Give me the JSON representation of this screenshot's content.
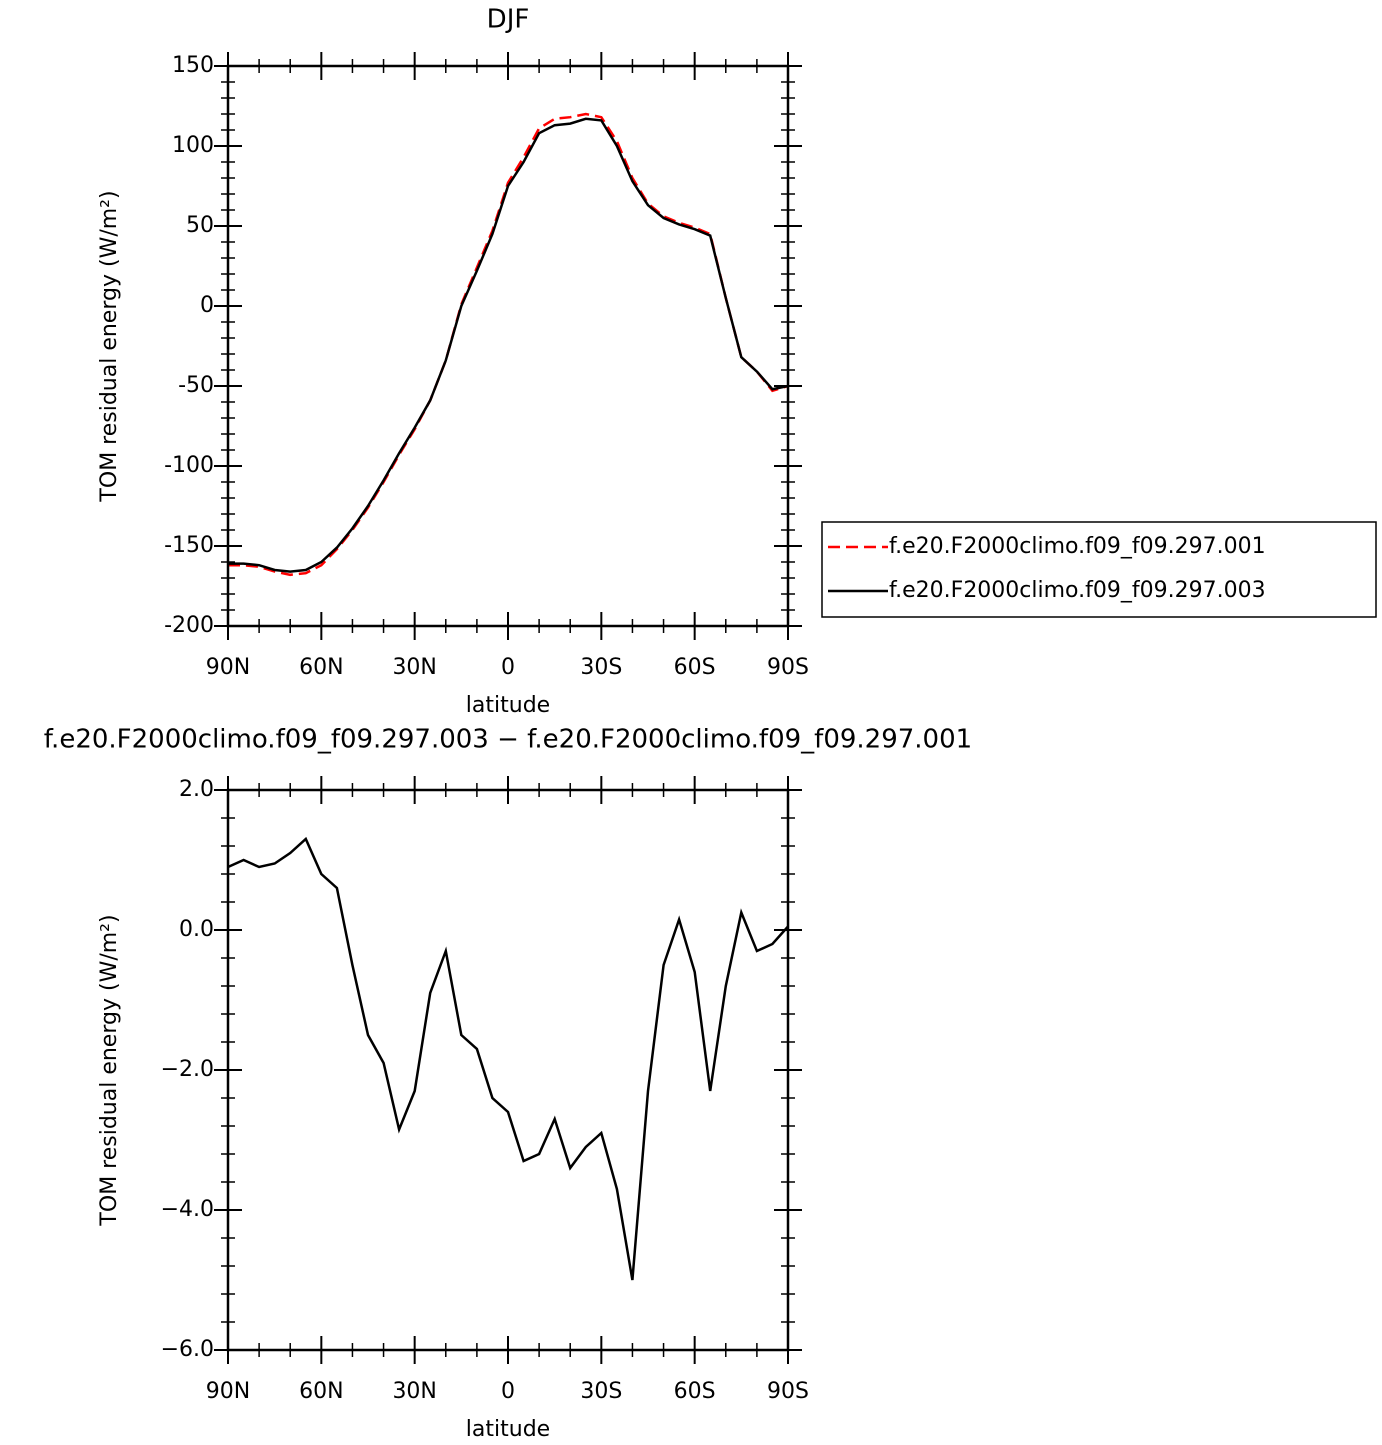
{
  "chart_data": [
    {
      "type": "line",
      "title": "DJF",
      "xlabel": "latitude",
      "ylabel": "TOM residual energy (W/m²)",
      "x": [
        90,
        85,
        80,
        75,
        70,
        65,
        60,
        55,
        50,
        45,
        40,
        35,
        30,
        25,
        20,
        15,
        10,
        5,
        0,
        -5,
        -10,
        -15,
        -20,
        -25,
        -30,
        -35,
        -40,
        -45,
        -50,
        -55,
        -60,
        -65,
        -70,
        -75,
        -80,
        -85,
        -90
      ],
      "xlim": [
        90,
        -90
      ],
      "xticks": [
        {
          "value": 90,
          "label": "90N"
        },
        {
          "value": 60,
          "label": "60N"
        },
        {
          "value": 30,
          "label": "30N"
        },
        0,
        {
          "value": -30,
          "label": "30S"
        },
        {
          "value": -60,
          "label": "60S"
        },
        {
          "value": -90,
          "label": "90S"
        }
      ],
      "ylim": [
        -200,
        150
      ],
      "yticks": [
        -200,
        -150,
        -100,
        -50,
        0,
        50,
        100,
        150
      ],
      "legend": "right",
      "series": [
        {
          "name": "f.e20.F2000climo.f09_f09.297.001",
          "color": "#ff0000",
          "style": "dashed",
          "values": [
            -162,
            -162,
            -163,
            -166,
            -168,
            -167,
            -162,
            -152,
            -140,
            -126,
            -110,
            -93,
            -77,
            -59,
            -34,
            1,
            24,
            47,
            77,
            93,
            111,
            117,
            118,
            120,
            118,
            103,
            80,
            64,
            56,
            52,
            49,
            45,
            5,
            -32,
            -41,
            -53,
            -50
          ]
        },
        {
          "name": "f.e20.F2000climo.f09_f09.297.003",
          "color": "#000000",
          "style": "solid",
          "values": [
            -161,
            -161,
            -162,
            -165,
            -166,
            -165,
            -160,
            -151,
            -139,
            -125,
            -109,
            -92,
            -76,
            -59,
            -34,
            0,
            22,
            45,
            75,
            90,
            108,
            113,
            114,
            117,
            116,
            100,
            78,
            63,
            55,
            51,
            48,
            44,
            5,
            -32,
            -41,
            -52,
            -50
          ]
        }
      ]
    },
    {
      "type": "line",
      "title": "f.e20.F2000climo.f09_f09.297.003 − f.e20.F2000climo.f09_f09.297.001",
      "xlabel": "latitude",
      "ylabel": "TOM residual energy (W/m²)",
      "x": [
        90,
        85,
        80,
        75,
        70,
        65,
        60,
        55,
        50,
        45,
        40,
        35,
        30,
        25,
        20,
        15,
        10,
        5,
        0,
        -5,
        -10,
        -15,
        -20,
        -25,
        -30,
        -35,
        -40,
        -45,
        -50,
        -55,
        -60,
        -65,
        -70,
        -75,
        -80,
        -85,
        -90
      ],
      "xlim": [
        90,
        -90
      ],
      "xticks": [
        {
          "value": 90,
          "label": "90N"
        },
        {
          "value": 60,
          "label": "60N"
        },
        {
          "value": 30,
          "label": "30N"
        },
        0,
        {
          "value": -30,
          "label": "30S"
        },
        {
          "value": -60,
          "label": "60S"
        },
        {
          "value": -90,
          "label": "90S"
        }
      ],
      "ylim": [
        -6,
        2
      ],
      "yticks": [
        {
          "value": -6,
          "label": "−6.0"
        },
        {
          "value": -4,
          "label": "−4.0"
        },
        {
          "value": -2,
          "label": "−2.0"
        },
        {
          "value": 0,
          "label": "0.0"
        },
        {
          "value": 2,
          "label": "2.0"
        }
      ],
      "series": [
        {
          "color": "#000000",
          "style": "solid",
          "values": [
            0.9,
            1.0,
            0.9,
            0.95,
            1.1,
            1.3,
            0.8,
            0.6,
            -0.5,
            -1.5,
            -1.9,
            -2.85,
            -2.3,
            -0.9,
            -0.3,
            -1.5,
            -1.7,
            -2.4,
            -2.6,
            -3.3,
            -3.2,
            -2.7,
            -3.4,
            -3.1,
            -2.9,
            -3.7,
            -5.0,
            -2.3,
            -0.5,
            0.15,
            -0.6,
            -2.3,
            -0.8,
            0.25,
            -0.3,
            -0.2,
            0.05
          ]
        }
      ]
    }
  ]
}
